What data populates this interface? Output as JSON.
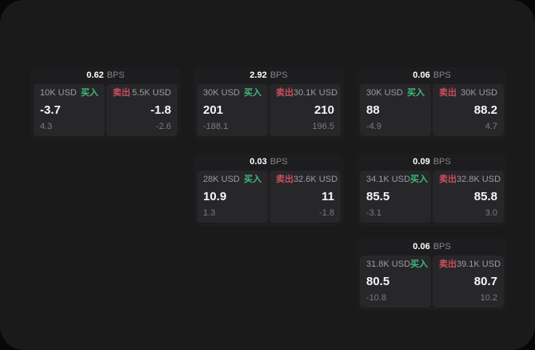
{
  "labels": {
    "bps_unit": "BPS",
    "buy": "买入",
    "sell": "卖出"
  },
  "colors": {
    "background": "#070707",
    "surface": "#1a1a1b",
    "card": "#1d1d1f",
    "pane": "#27272a",
    "buy_accent": "#40b87a",
    "sell_accent": "#cb4e5e",
    "price_text": "#f5f5f6",
    "muted_text": "#7b7b80"
  },
  "cards": [
    {
      "bps": "0.62",
      "buy": {
        "amount": "10K USD",
        "price": "-3.7",
        "delta": "4.3"
      },
      "sell": {
        "amount": "5.5K USD",
        "price": "-1.8",
        "delta": "-2.6"
      }
    },
    {
      "bps": "2.92",
      "buy": {
        "amount": "30K USD",
        "price": "201",
        "delta": "-188.1"
      },
      "sell": {
        "amount": "30.1K USD",
        "price": "210",
        "delta": "196.5"
      }
    },
    {
      "bps": "0.06",
      "buy": {
        "amount": "30K USD",
        "price": "88",
        "delta": "-4.9"
      },
      "sell": {
        "amount": "30K USD",
        "price": "88.2",
        "delta": "4.7"
      }
    },
    {
      "bps": "0.03",
      "buy": {
        "amount": "28K USD",
        "price": "10.9",
        "delta": "1.3"
      },
      "sell": {
        "amount": "32.6K USD",
        "price": "11",
        "delta": "-1.8"
      }
    },
    {
      "bps": "0.09",
      "buy": {
        "amount": "34.1K USD",
        "price": "85.5",
        "delta": "-3.1"
      },
      "sell": {
        "amount": "32.8K USD",
        "price": "85.8",
        "delta": "3.0"
      }
    },
    {
      "bps": "0.06",
      "buy": {
        "amount": "31.8K USD",
        "price": "80.5",
        "delta": "-10.8"
      },
      "sell": {
        "amount": "39.1K USD",
        "price": "80.7",
        "delta": "10.2"
      }
    }
  ]
}
